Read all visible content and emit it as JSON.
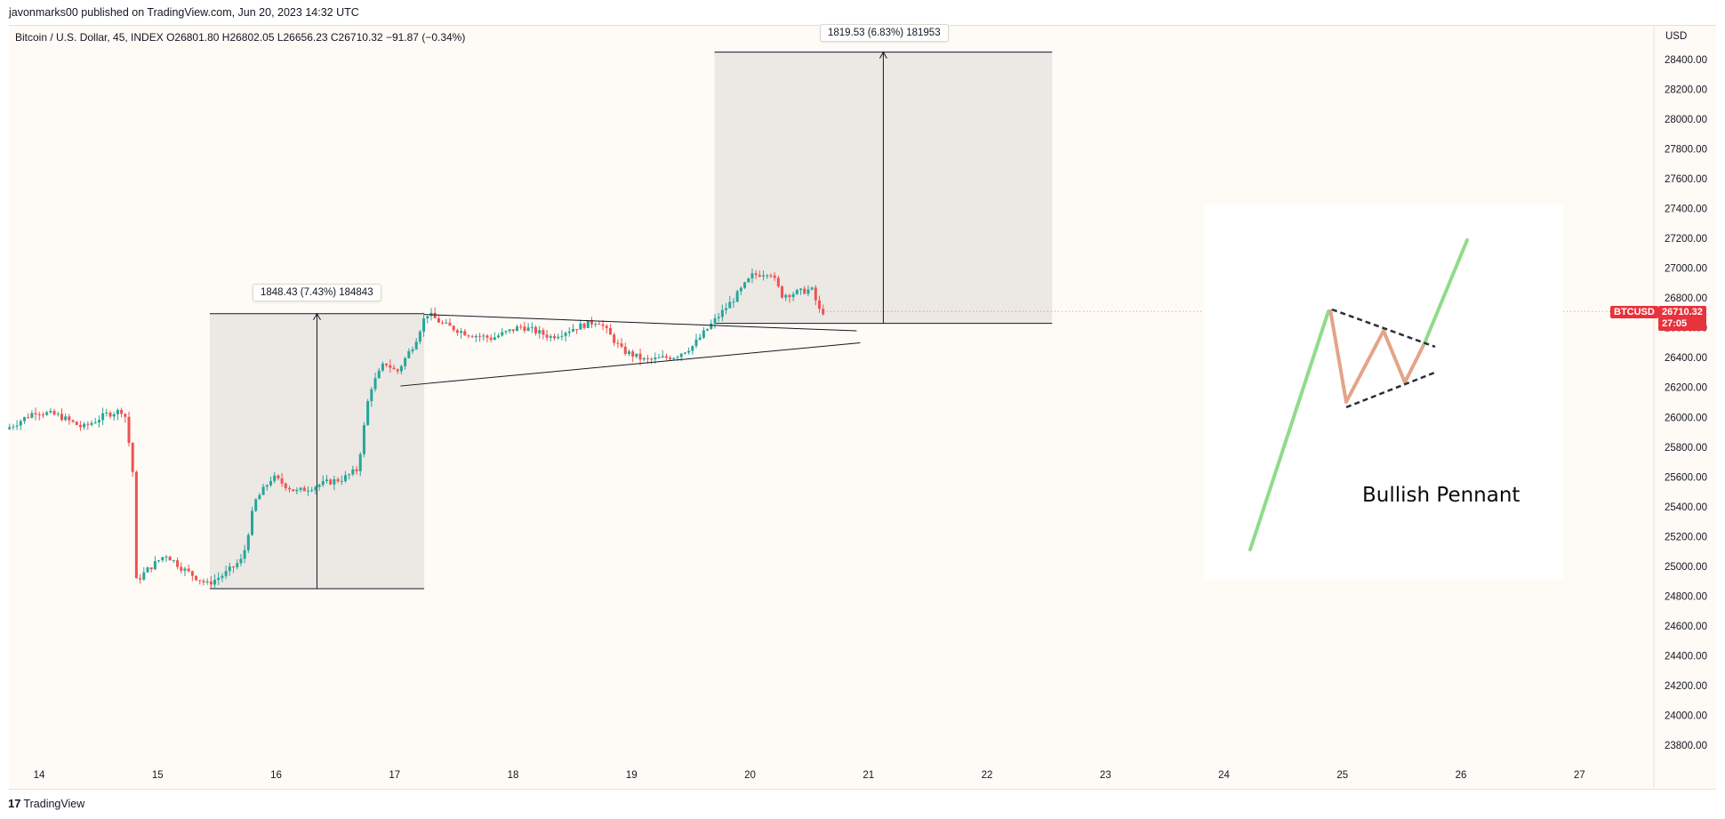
{
  "header": {
    "publish_line": "javonmarks00 published on TradingView.com, Jun 20, 2023 14:32 UTC"
  },
  "symbol_info": {
    "line": "Bitcoin / U.S. Dollar, 45, INDEX  O26801.80  H26802.05  L26656.23  C26710.32  −91.87 (−0.34%)"
  },
  "price_axis": {
    "currency": "USD",
    "ticks": [
      "28400.00",
      "28200.00",
      "28000.00",
      "27800.00",
      "27600.00",
      "27400.00",
      "27200.00",
      "27000.00",
      "26800.00",
      "26600.00",
      "26400.00",
      "26200.00",
      "26000.00",
      "25800.00",
      "25600.00",
      "25400.00",
      "25200.00",
      "25000.00",
      "24800.00",
      "24600.00",
      "24400.00",
      "24200.00",
      "24000.00",
      "23800.00"
    ]
  },
  "current_price": {
    "symbol": "BTCUSD",
    "price": "26710.32",
    "countdown": "27:05"
  },
  "measures": {
    "first_label": "1848.43 (7.43%) 184843",
    "second_label": "1819.53 (6.83%) 181953"
  },
  "inset": {
    "title": "Bullish Pennant"
  },
  "footer": {
    "brand": "TradingView",
    "logo_glyph": "17"
  },
  "colors": {
    "up_candle": "#26a69a",
    "down_candle": "#ef5350",
    "pennant_green": "#8fdc8a",
    "pennant_orange": "#e3a488",
    "price_tag": "#e8323c"
  },
  "chart_data": {
    "type": "candlestick",
    "symbol": "Bitcoin / U.S. Dollar",
    "timeframe": "45",
    "x_ticks": [
      "14",
      "15",
      "16",
      "17",
      "18",
      "19",
      "20",
      "21",
      "22",
      "23",
      "24",
      "25",
      "26",
      "27"
    ],
    "ylim": [
      23700,
      28500
    ],
    "y_ticks": [
      28400,
      28200,
      28000,
      27800,
      27600,
      27400,
      27200,
      27000,
      26800,
      26600,
      26400,
      26200,
      26000,
      25800,
      25600,
      25400,
      25200,
      25000,
      24800,
      24600,
      24400,
      24200,
      24000,
      23800
    ],
    "price_path": [
      [
        13.75,
        25920
      ],
      [
        13.9,
        25990
      ],
      [
        14.0,
        26040
      ],
      [
        14.2,
        26010
      ],
      [
        14.4,
        25930
      ],
      [
        14.6,
        26020
      ],
      [
        14.75,
        26050
      ],
      [
        14.82,
        25660
      ],
      [
        14.85,
        24900
      ],
      [
        14.95,
        24980
      ],
      [
        15.1,
        25080
      ],
      [
        15.25,
        24980
      ],
      [
        15.45,
        24880
      ],
      [
        15.6,
        24950
      ],
      [
        15.75,
        25050
      ],
      [
        15.85,
        25430
      ],
      [
        16.0,
        25600
      ],
      [
        16.2,
        25500
      ],
      [
        16.45,
        25560
      ],
      [
        16.6,
        25590
      ],
      [
        16.72,
        25650
      ],
      [
        16.82,
        26180
      ],
      [
        16.95,
        26370
      ],
      [
        17.05,
        26300
      ],
      [
        17.2,
        26500
      ],
      [
        17.3,
        26700
      ],
      [
        17.45,
        26620
      ],
      [
        17.65,
        26560
      ],
      [
        17.85,
        26530
      ],
      [
        18.1,
        26610
      ],
      [
        18.35,
        26540
      ],
      [
        18.55,
        26600
      ],
      [
        18.75,
        26650
      ],
      [
        18.95,
        26450
      ],
      [
        19.15,
        26380
      ],
      [
        19.4,
        26410
      ],
      [
        19.55,
        26480
      ],
      [
        19.7,
        26620
      ],
      [
        19.9,
        26800
      ],
      [
        20.05,
        26950
      ],
      [
        20.2,
        26980
      ],
      [
        20.3,
        26820
      ],
      [
        20.45,
        26840
      ],
      [
        20.55,
        26860
      ],
      [
        20.62,
        26710
      ]
    ],
    "patterns": [
      {
        "kind": "price_range",
        "label": "1848.43 (7.43%) 184843",
        "from_x": 15.44,
        "to_x": 17.25,
        "low": 24850,
        "high": 26695
      },
      {
        "kind": "triangle_upper",
        "from": [
          17.25,
          26690
        ],
        "to": [
          20.9,
          26580
        ]
      },
      {
        "kind": "triangle_lower",
        "from": [
          17.05,
          26210
        ],
        "to": [
          20.93,
          26500
        ]
      },
      {
        "kind": "price_range",
        "label": "1819.53 (6.83%) 181953",
        "from_x": 19.7,
        "to_x": 22.55,
        "low": 26630,
        "high": 28450
      }
    ]
  }
}
